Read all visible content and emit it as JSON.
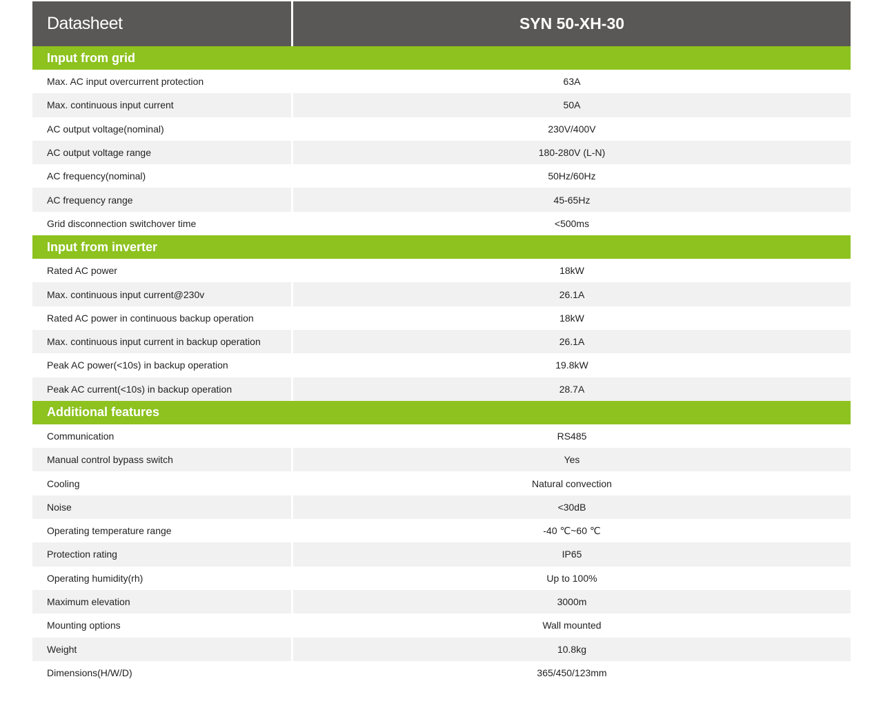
{
  "header": {
    "title": "Datasheet",
    "model": "SYN 50-XH-30"
  },
  "sections": [
    {
      "title": "Input from grid",
      "rows": [
        {
          "label": "Max. AC input overcurrent protection",
          "value": "63A"
        },
        {
          "label": "Max. continuous input current",
          "value": "50A"
        },
        {
          "label": "AC output voltage(nominal)",
          "value": "230V/400V"
        },
        {
          "label": "AC output voltage range",
          "value": "180-280V (L-N)"
        },
        {
          "label": "AC frequency(nominal)",
          "value": "50Hz/60Hz"
        },
        {
          "label": "AC frequency range",
          "value": "45-65Hz"
        },
        {
          "label": "Grid disconnection switchover time",
          "value": "<500ms"
        }
      ]
    },
    {
      "title": "Input from inverter",
      "rows": [
        {
          "label": "Rated AC power",
          "value": "18kW"
        },
        {
          "label": "Max. continuous input current@230v",
          "value": "26.1A"
        },
        {
          "label": "Rated AC power in continuous backup operation",
          "value": "18kW"
        },
        {
          "label": "Max. continuous input current in backup operation",
          "value": "26.1A"
        },
        {
          "label": "Peak AC power(<10s) in backup operation",
          "value": "19.8kW"
        },
        {
          "label": "Peak AC current(<10s) in backup operation",
          "value": "28.7A"
        }
      ]
    },
    {
      "title": "Additional features",
      "rows": [
        {
          "label": "Communication",
          "value": "RS485"
        },
        {
          "label": "Manual control bypass switch",
          "value": "Yes"
        },
        {
          "label": "Cooling",
          "value": "Natural convection"
        },
        {
          "label": "Noise",
          "value": "<30dB"
        },
        {
          "label": "Operating temperature range",
          "value": "-40 ℃~60 ℃"
        },
        {
          "label": "Protection rating",
          "value": "IP65"
        },
        {
          "label": "Operating humidity(rh)",
          "value": "Up to 100%"
        },
        {
          "label": "Maximum elevation",
          "value": "3000m"
        },
        {
          "label": "Mounting options",
          "value": "Wall mounted"
        },
        {
          "label": "Weight",
          "value": "10.8kg"
        },
        {
          "label": "Dimensions(H/W/D)",
          "value": "365/450/123mm"
        }
      ]
    }
  ],
  "colors": {
    "header_bg": "#595856",
    "section_bg": "#8dc21f",
    "row_alt_bg": "#f1f1f1"
  }
}
